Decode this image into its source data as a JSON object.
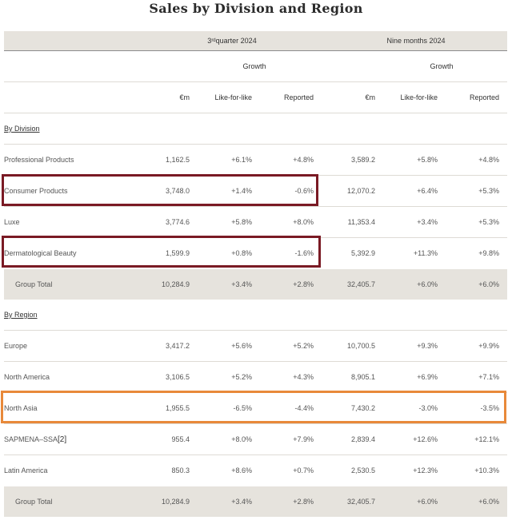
{
  "title": "Sales by Division and Region",
  "header": {
    "q3_prefix": "3",
    "q3_sup": "rd",
    "q3_suffix": " quarter 2024",
    "nine_months": "Nine months 2024",
    "growth": "Growth",
    "col_em": "€m",
    "col_lfl": "Like-for-like",
    "col_reported": "Reported"
  },
  "division": {
    "heading": "By Division",
    "rows": [
      {
        "name": "Professional Products",
        "q_em": "1,162.5",
        "q_lfl": "+6.1%",
        "q_rep": "+4.8%",
        "n_em": "3,589.2",
        "n_lfl": "+5.8%",
        "n_rep": "+4.8%"
      },
      {
        "name": "Consumer Products",
        "q_em": "3,748.0",
        "q_lfl": "+1.4%",
        "q_rep": "-0.6%",
        "n_em": "12,070.2",
        "n_lfl": "+6.4%",
        "n_rep": "+5.3%"
      },
      {
        "name": "Luxe",
        "q_em": "3,774.6",
        "q_lfl": "+5.8%",
        "q_rep": "+8.0%",
        "n_em": "11,353.4",
        "n_lfl": "+3.4%",
        "n_rep": "+5.3%"
      },
      {
        "name": "Dermatological Beauty",
        "q_em": "1,599.9",
        "q_lfl": "+0.8%",
        "q_rep": "-1.6%",
        "n_em": "5,392.9",
        "n_lfl": "+11.3%",
        "n_rep": "+9.8%"
      }
    ],
    "total": {
      "name": "Group Total",
      "q_em": "10,284.9",
      "q_lfl": "+3.4%",
      "q_rep": "+2.8%",
      "n_em": "32,405.7",
      "n_lfl": "+6.0%",
      "n_rep": "+6.0%"
    }
  },
  "region": {
    "heading": "By Region",
    "rows": [
      {
        "name": "Europe",
        "q_em": "3,417.2",
        "q_lfl": "+5.6%",
        "q_rep": "+5.2%",
        "n_em": "10,700.5",
        "n_lfl": "+9.3%",
        "n_rep": "+9.9%"
      },
      {
        "name": "North America",
        "q_em": "3,106.5",
        "q_lfl": "+5.2%",
        "q_rep": "+4.3%",
        "n_em": "8,905.1",
        "n_lfl": "+6.9%",
        "n_rep": "+7.1%"
      },
      {
        "name": "North Asia",
        "q_em": "1,955.5",
        "q_lfl": "-6.5%",
        "q_rep": "-4.4%",
        "n_em": "7,430.2",
        "n_lfl": "-3.0%",
        "n_rep": "-3.5%"
      },
      {
        "name": "SAPMENA–SSA",
        "name_note": "[2]",
        "q_em": "955.4",
        "q_lfl": "+8.0%",
        "q_rep": "+7.9%",
        "n_em": "2,839.4",
        "n_lfl": "+12.6%",
        "n_rep": "+12.1%"
      },
      {
        "name": "Latin America",
        "q_em": "850.3",
        "q_lfl": "+8.6%",
        "q_rep": "+0.7%",
        "n_em": "2,530.5",
        "n_lfl": "+12.3%",
        "n_rep": "+10.3%"
      }
    ],
    "total": {
      "name": "Group Total",
      "q_em": "10,284.9",
      "q_lfl": "+3.4%",
      "q_rep": "+2.8%",
      "n_em": "32,405.7",
      "n_lfl": "+6.0%",
      "n_rep": "+6.0%"
    }
  },
  "colors": {
    "header_shade": "#e6e3dd",
    "highlight_dark_red": "#7a1a24",
    "highlight_orange": "#e8893a"
  }
}
